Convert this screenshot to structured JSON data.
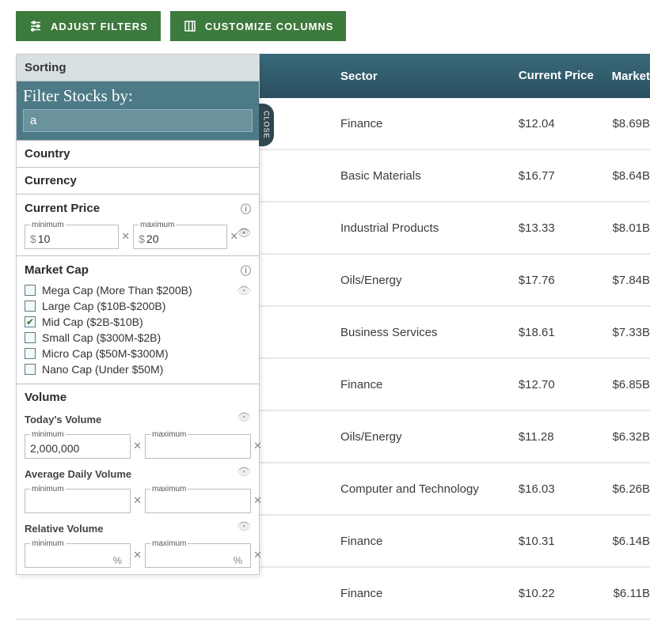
{
  "buttons": {
    "adjust_filters": "ADJUST FILTERS",
    "customize_columns": "CUSTOMIZE COLUMNS"
  },
  "table": {
    "headers": {
      "sector": "Sector",
      "current_price": "Current Price",
      "market": "Market"
    },
    "rows": [
      {
        "sector": "Finance",
        "price": "$12.04",
        "market": "$8.69B"
      },
      {
        "sector": "Basic Materials",
        "price": "$16.77",
        "market": "$8.64B"
      },
      {
        "sector": "Industrial Products",
        "price": "$13.33",
        "market": "$8.01B"
      },
      {
        "sector": "Oils/Energy",
        "price": "$17.76",
        "market": "$7.84B"
      },
      {
        "sector": "Business Services",
        "price": "$18.61",
        "market": "$7.33B"
      },
      {
        "sector": "Finance",
        "price": "$12.70",
        "market": "$6.85B"
      },
      {
        "sector": "Oils/Energy",
        "price": "$11.28",
        "market": "$6.32B"
      },
      {
        "sector": "Computer and Technology",
        "price": "$16.03",
        "market": "$6.26B"
      },
      {
        "sector": "Finance",
        "price": "$10.31",
        "market": "$6.14B"
      },
      {
        "sector": "Finance",
        "price": "$10.22",
        "market": "$6.11B"
      }
    ]
  },
  "panel": {
    "close": "CLOSE",
    "sorting": "Sorting",
    "filter_title": "Filter Stocks by:",
    "filter_input_value": "a",
    "country": "Country",
    "currency": "Currency",
    "current_price": {
      "title": "Current Price",
      "min_legend": "minimum",
      "max_legend": "maximum",
      "min_value": "10",
      "max_value": "20"
    },
    "market_cap": {
      "title": "Market Cap",
      "options": [
        {
          "label": "Mega Cap (More Than $200B)",
          "checked": false
        },
        {
          "label": "Large Cap ($10B-$200B)",
          "checked": false
        },
        {
          "label": "Mid Cap ($2B-$10B)",
          "checked": true
        },
        {
          "label": "Small Cap ($300M-$2B)",
          "checked": false
        },
        {
          "label": "Micro Cap ($50M-$300M)",
          "checked": false
        },
        {
          "label": "Nano Cap (Under $50M)",
          "checked": false
        }
      ]
    },
    "volume": {
      "title": "Volume",
      "today": {
        "label": "Today's Volume",
        "min": "2,000,000",
        "max": ""
      },
      "avg": {
        "label": "Average Daily Volume",
        "min": "",
        "max": ""
      },
      "rel": {
        "label": "Relative Volume",
        "min": "",
        "max": ""
      },
      "min_legend": "minimum",
      "max_legend": "maximum"
    }
  },
  "colors": {
    "button_bg": "#3d7a3d",
    "header_bg": "#2f5969",
    "panel_search_bg": "#4d7a87"
  }
}
